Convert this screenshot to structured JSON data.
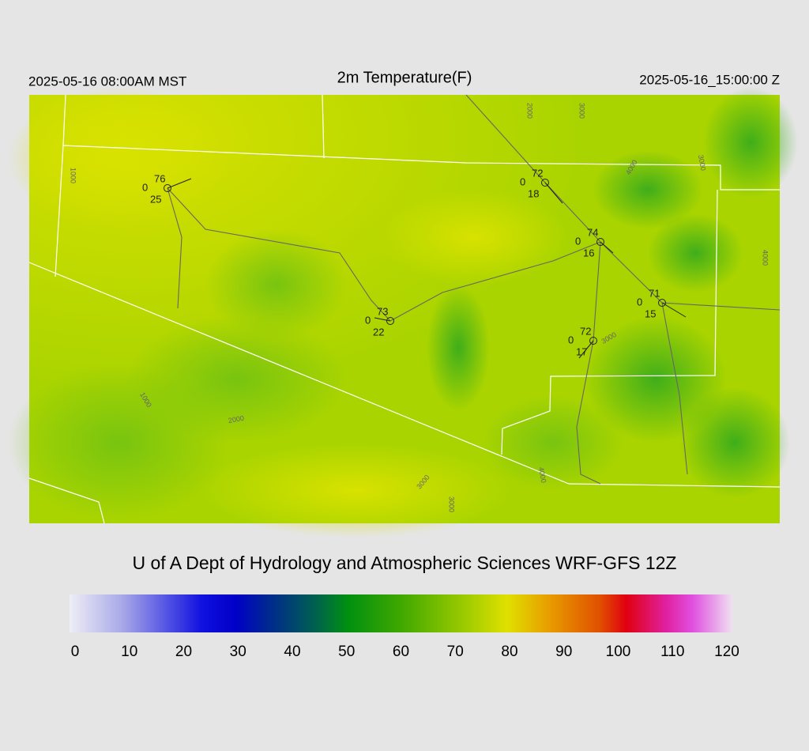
{
  "header": {
    "left": "2025-05-16 08:00AM MST",
    "title": "2m Temperature(F)",
    "right": "2025-05-16_15:00:00 Z"
  },
  "stations": [
    {
      "temp": 76,
      "wind": 0,
      "dewpoint": 25
    },
    {
      "temp": 72,
      "wind": 0,
      "dewpoint": 18
    },
    {
      "temp": 74,
      "wind": 0,
      "dewpoint": 16
    },
    {
      "temp": 71,
      "wind": 0,
      "dewpoint": 15
    },
    {
      "temp": 73,
      "wind": 0,
      "dewpoint": 22
    },
    {
      "temp": 72,
      "wind": 0,
      "dewpoint": 17
    }
  ],
  "contour_labels": [
    "1000",
    "2000",
    "3000",
    "4000",
    "3000",
    "1000",
    "2000",
    "3000",
    "3000",
    "3000",
    "4000",
    "4000"
  ],
  "credit": "U of A Dept of Hydrology and Atmospheric Sciences WRF-GFS 12Z",
  "colorbar": {
    "ticks": [
      0,
      10,
      20,
      30,
      40,
      50,
      60,
      70,
      80,
      90,
      100,
      110,
      120
    ]
  }
}
